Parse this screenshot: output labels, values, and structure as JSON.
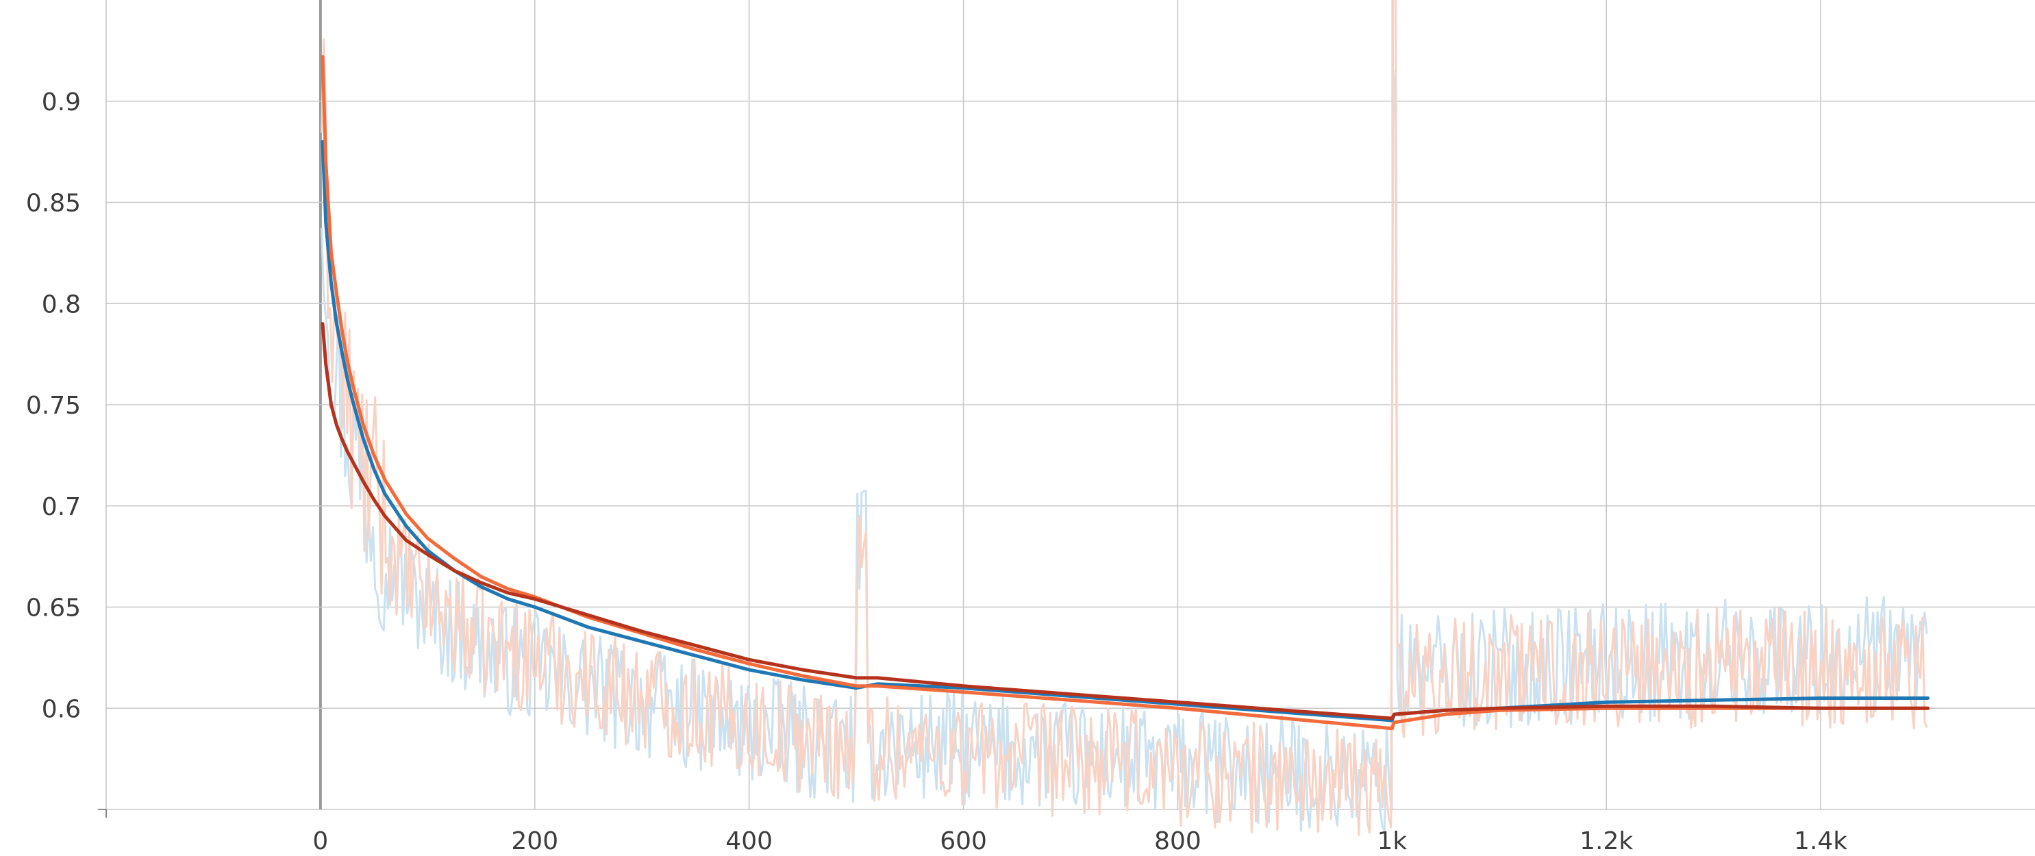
{
  "chart_data": {
    "type": "line",
    "title": "",
    "xlabel": "",
    "ylabel": "",
    "xlim": [
      -200,
      1600
    ],
    "ylim": [
      0.55,
      0.95
    ],
    "grid": true,
    "x_ticks": [
      {
        "value": 0,
        "label": "0"
      },
      {
        "value": 200,
        "label": "200"
      },
      {
        "value": 400,
        "label": "400"
      },
      {
        "value": 600,
        "label": "600"
      },
      {
        "value": 800,
        "label": "800"
      },
      {
        "value": 1000,
        "label": "1k"
      },
      {
        "value": 1200,
        "label": "1.2k"
      },
      {
        "value": 1400,
        "label": "1.4k"
      }
    ],
    "y_ticks": [
      {
        "value": 0.6,
        "label": "0.6"
      },
      {
        "value": 0.65,
        "label": "0.65"
      },
      {
        "value": 0.7,
        "label": "0.7"
      },
      {
        "value": 0.75,
        "label": "0.75"
      },
      {
        "value": 0.8,
        "label": "0.8"
      },
      {
        "value": 0.85,
        "label": "0.85"
      },
      {
        "value": 0.9,
        "label": "0.9"
      }
    ],
    "series": [
      {
        "color": "#1f77b4",
        "raw_color": "#c9e1f0",
        "x": [
          2,
          5,
          10,
          15,
          20,
          25,
          30,
          40,
          50,
          60,
          80,
          100,
          125,
          150,
          175,
          200,
          250,
          300,
          350,
          400,
          450,
          500,
          520,
          600,
          700,
          800,
          900,
          1000,
          1002,
          1050,
          1100,
          1200,
          1300,
          1400,
          1500
        ],
        "y": [
          0.88,
          0.84,
          0.81,
          0.79,
          0.776,
          0.763,
          0.752,
          0.733,
          0.718,
          0.706,
          0.69,
          0.678,
          0.668,
          0.66,
          0.654,
          0.65,
          0.64,
          0.633,
          0.626,
          0.619,
          0.614,
          0.61,
          0.612,
          0.61,
          0.606,
          0.602,
          0.598,
          0.594,
          0.597,
          0.599,
          0.6,
          0.603,
          0.604,
          0.605,
          0.605
        ]
      },
      {
        "color": "#f26b3c",
        "raw_color": "#f9d2c3",
        "x": [
          2,
          5,
          10,
          15,
          20,
          25,
          30,
          40,
          50,
          60,
          80,
          100,
          125,
          150,
          175,
          200,
          250,
          300,
          350,
          400,
          450,
          500,
          520,
          600,
          700,
          800,
          900,
          1000,
          1002,
          1050,
          1100,
          1200,
          1300,
          1400,
          1500
        ],
        "y": [
          0.922,
          0.87,
          0.825,
          0.805,
          0.787,
          0.772,
          0.76,
          0.74,
          0.725,
          0.713,
          0.696,
          0.684,
          0.674,
          0.665,
          0.659,
          0.655,
          0.645,
          0.637,
          0.629,
          0.622,
          0.616,
          0.611,
          0.611,
          0.608,
          0.604,
          0.6,
          0.595,
          0.59,
          0.593,
          0.597,
          0.599,
          0.6,
          0.6,
          0.6,
          0.6
        ]
      },
      {
        "color": "#b5331c",
        "raw_color": "",
        "x": [
          2,
          5,
          10,
          15,
          20,
          25,
          30,
          40,
          50,
          60,
          80,
          100,
          125,
          150,
          175,
          200,
          250,
          300,
          350,
          400,
          450,
          500,
          520,
          600,
          700,
          800,
          900,
          1000,
          1002,
          1050,
          1100,
          1200,
          1300,
          1400,
          1500
        ],
        "y": [
          0.79,
          0.77,
          0.75,
          0.74,
          0.733,
          0.727,
          0.722,
          0.712,
          0.703,
          0.695,
          0.683,
          0.676,
          0.668,
          0.662,
          0.657,
          0.654,
          0.646,
          0.638,
          0.631,
          0.624,
          0.619,
          0.615,
          0.615,
          0.611,
          0.607,
          0.603,
          0.599,
          0.595,
          0.597,
          0.599,
          0.6,
          0.601,
          0.601,
          0.6,
          0.6
        ]
      }
    ]
  }
}
